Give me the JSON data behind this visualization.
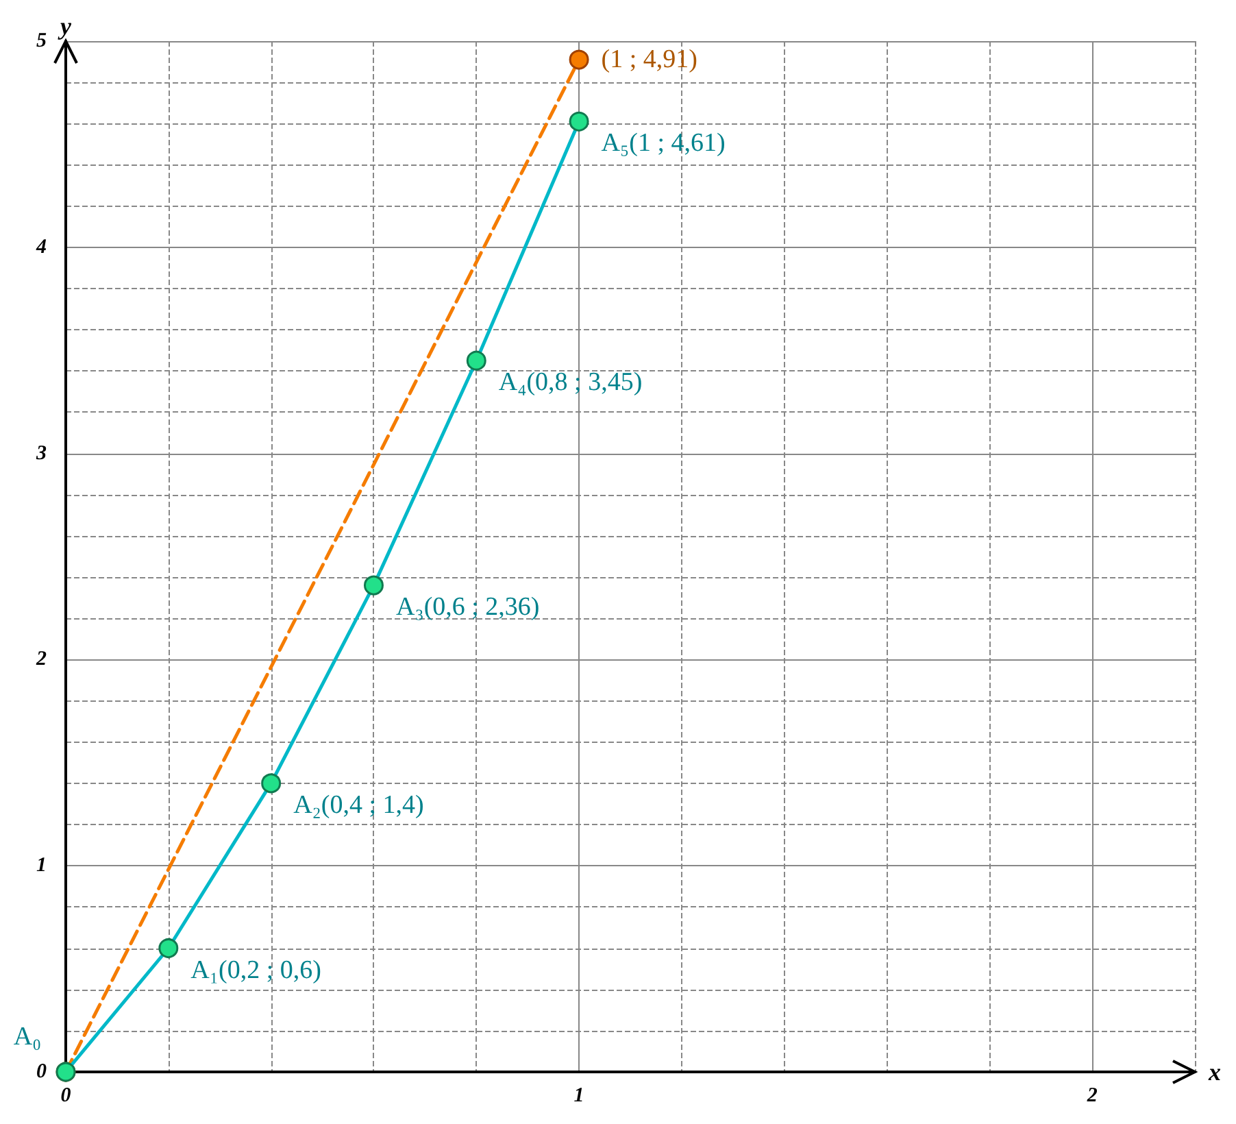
{
  "chart_data": {
    "type": "line",
    "xlabel": "x",
    "ylabel": "y",
    "xlim": [
      0,
      2.2
    ],
    "ylim": [
      0,
      5
    ],
    "xticks": [
      0,
      {
        "value": 0.2,
        "label": null
      },
      {
        "value": 0.4,
        "label": null
      },
      {
        "value": 0.6,
        "label": null
      },
      {
        "value": 0.8,
        "label": null
      },
      1,
      {
        "value": 1.2,
        "label": null
      },
      {
        "value": 1.4,
        "label": null
      },
      {
        "value": 1.6,
        "label": null
      },
      {
        "value": 1.8,
        "label": null
      },
      2,
      {
        "value": 2.2,
        "label": null
      }
    ],
    "yticks": [
      0,
      {
        "value": 0.2,
        "label": null
      },
      {
        "value": 0.4,
        "label": null
      },
      {
        "value": 0.6,
        "label": null
      },
      {
        "value": 0.8,
        "label": null
      },
      1,
      {
        "value": 1.2,
        "label": null
      },
      {
        "value": 1.4,
        "label": null
      },
      {
        "value": 1.6,
        "label": null
      },
      {
        "value": 1.8,
        "label": null
      },
      2,
      {
        "value": 2.2,
        "label": null
      },
      {
        "value": 2.4,
        "label": null
      },
      {
        "value": 2.6,
        "label": null
      },
      {
        "value": 2.8,
        "label": null
      },
      3,
      {
        "value": 3.2,
        "label": null
      },
      {
        "value": 3.4,
        "label": null
      },
      {
        "value": 3.6,
        "label": null
      },
      {
        "value": 3.8,
        "label": null
      },
      4,
      {
        "value": 4.2,
        "label": null
      },
      {
        "value": 4.4,
        "label": null
      },
      {
        "value": 4.6,
        "label": null
      },
      {
        "value": 4.8,
        "label": null
      },
      5
    ],
    "grid": true,
    "series": [
      {
        "color": "#f57c00",
        "line_style": "dashed",
        "marker": "circle",
        "x": [
          0,
          1
        ],
        "values": [
          0,
          4.91
        ],
        "value_labels": [
          null,
          "(1 ; 4,91)"
        ]
      },
      {
        "color": "#00b8c8",
        "line_style": "solid",
        "marker": "circle",
        "x": [
          0,
          0.2,
          0.4,
          0.6,
          0.8,
          1
        ],
        "values": [
          0,
          0.6,
          1.4,
          2.36,
          3.45,
          4.61
        ],
        "value_labels": [
          "A₀",
          "A₁(0,2 ; 0,6)",
          "A₂(0,4 ; 1,4)",
          "A₃(0,6 ; 2,36)",
          "A₄(0,8 ; 3,45)",
          "A₅(1 ; 4,61)"
        ]
      }
    ]
  }
}
